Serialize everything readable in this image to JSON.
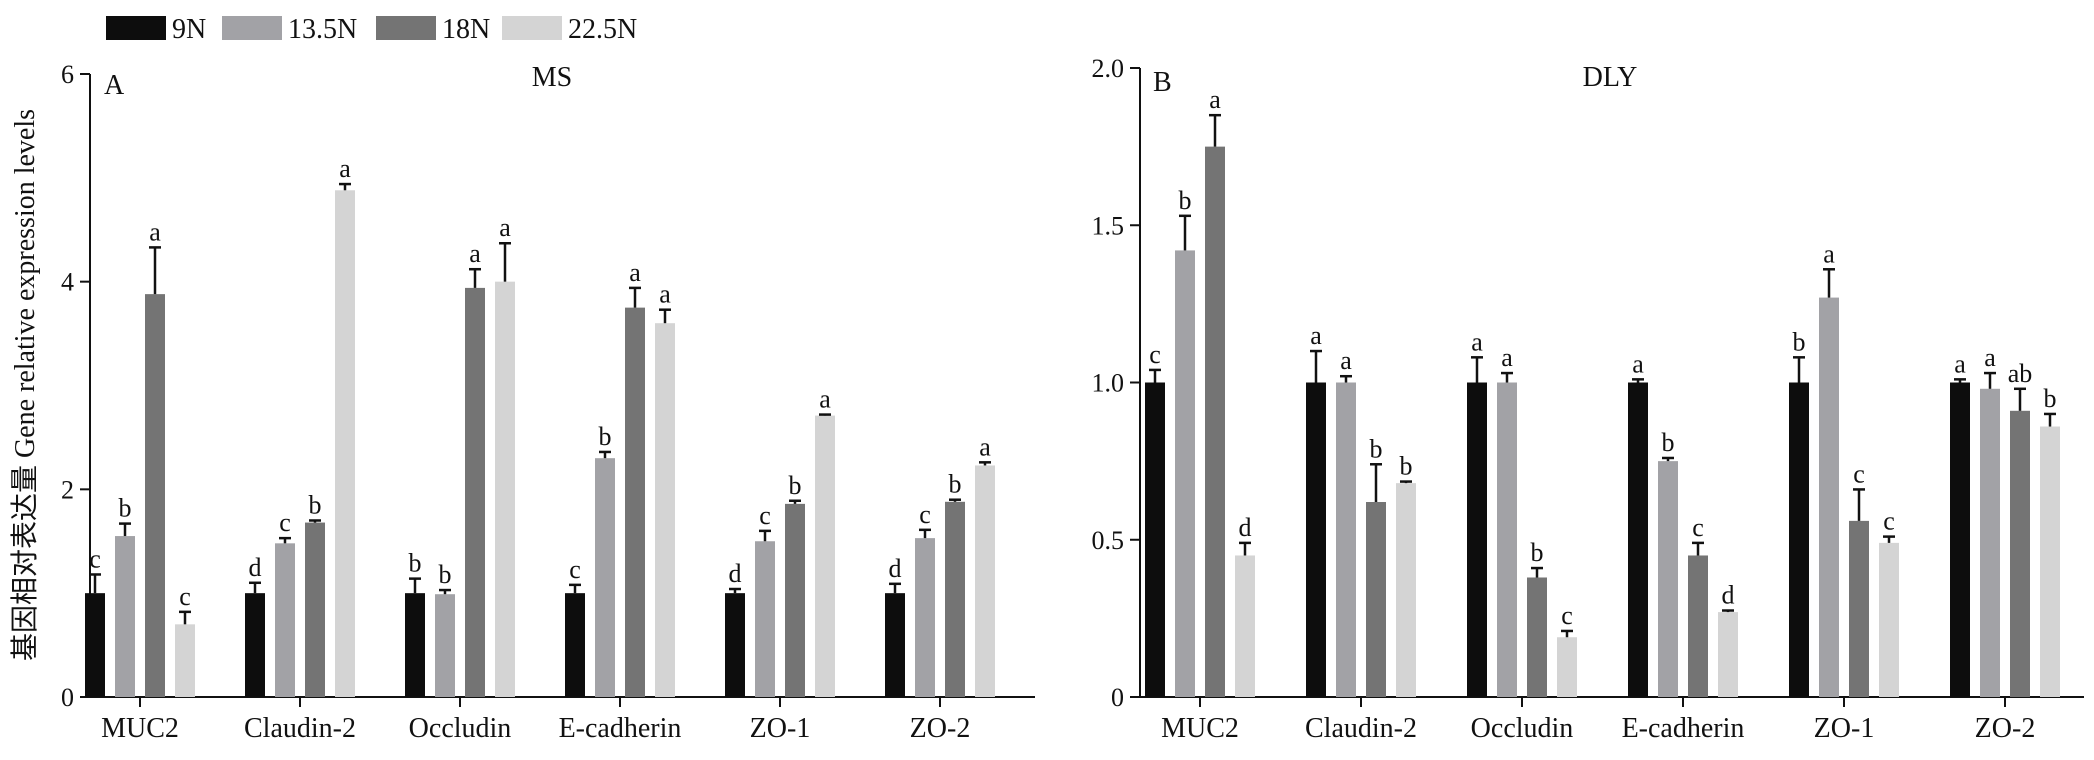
{
  "colors": {
    "9N": "#0d0d0d",
    "13.5N": "#a2a2a6",
    "18N": "#747474",
    "22.5N": "#d4d4d4"
  },
  "legend": [
    "9N",
    "13.5N",
    "18N",
    "22.5N"
  ],
  "ylabel": "基因相对表达量 Gene relative expression levels",
  "chart_data": [
    {
      "type": "bar",
      "panel_letter": "A",
      "title": "MS",
      "categories": [
        "MUC2",
        "Claudin-2",
        "Occludin",
        "E-cadherin",
        "ZO-1",
        "ZO-2"
      ],
      "ylim": [
        0,
        6
      ],
      "yticks": [
        "0",
        "2",
        "4",
        "6"
      ],
      "series": [
        {
          "name": "9N",
          "values": [
            1.0,
            1.0,
            1.0,
            1.0,
            1.0,
            1.0
          ],
          "errors": [
            0.18,
            0.1,
            0.14,
            0.08,
            0.04,
            0.09
          ],
          "labels": [
            "c",
            "d",
            "b",
            "c",
            "d",
            "d"
          ]
        },
        {
          "name": "13.5N",
          "values": [
            1.55,
            1.48,
            0.99,
            2.3,
            1.5,
            1.53
          ],
          "errors": [
            0.12,
            0.05,
            0.04,
            0.06,
            0.1,
            0.08
          ],
          "labels": [
            "b",
            "c",
            "b",
            "b",
            "c",
            "c"
          ]
        },
        {
          "name": "18N",
          "values": [
            3.88,
            1.68,
            3.94,
            3.75,
            1.86,
            1.88
          ],
          "errors": [
            0.45,
            0.02,
            0.18,
            0.19,
            0.03,
            0.02
          ],
          "labels": [
            "a",
            "b",
            "a",
            "a",
            "b",
            "b"
          ]
        },
        {
          "name": "22.5N",
          "values": [
            0.7,
            4.88,
            4.0,
            3.6,
            2.71,
            2.23
          ],
          "errors": [
            0.12,
            0.06,
            0.37,
            0.13,
            0.01,
            0.03
          ],
          "labels": [
            "c",
            "a",
            "a",
            "a",
            "a",
            "a"
          ]
        }
      ]
    },
    {
      "type": "bar",
      "panel_letter": "B",
      "title": "DLY",
      "categories": [
        "MUC2",
        "Claudin-2",
        "Occludin",
        "E-cadherin",
        "ZO-1",
        "ZO-2"
      ],
      "ylim": [
        0,
        2.0
      ],
      "yticks": [
        "0",
        "0.5",
        "1.0",
        "1.5",
        "2.0"
      ],
      "series": [
        {
          "name": "9N",
          "values": [
            1.0,
            1.0,
            1.0,
            1.0,
            1.0,
            1.0
          ],
          "errors": [
            0.04,
            0.1,
            0.08,
            0.01,
            0.08,
            0.01
          ],
          "labels": [
            "c",
            "a",
            "a",
            "a",
            "b",
            "a"
          ]
        },
        {
          "name": "13.5N",
          "values": [
            1.42,
            1.0,
            1.0,
            0.75,
            1.27,
            0.98
          ],
          "errors": [
            0.11,
            0.02,
            0.03,
            0.01,
            0.09,
            0.05
          ],
          "labels": [
            "b",
            "a",
            "a",
            "b",
            "a",
            "a"
          ]
        },
        {
          "name": "18N",
          "values": [
            1.75,
            0.62,
            0.38,
            0.45,
            0.56,
            0.91
          ],
          "errors": [
            0.1,
            0.12,
            0.03,
            0.04,
            0.1,
            0.07
          ],
          "labels": [
            "a",
            "b",
            "b",
            "c",
            "c",
            "ab"
          ]
        },
        {
          "name": "22.5N",
          "values": [
            0.45,
            0.68,
            0.19,
            0.27,
            0.49,
            0.86
          ],
          "errors": [
            0.04,
            0.005,
            0.02,
            0.005,
            0.02,
            0.04
          ],
          "labels": [
            "d",
            "b",
            "c",
            "d",
            "c",
            "b"
          ]
        }
      ]
    }
  ]
}
